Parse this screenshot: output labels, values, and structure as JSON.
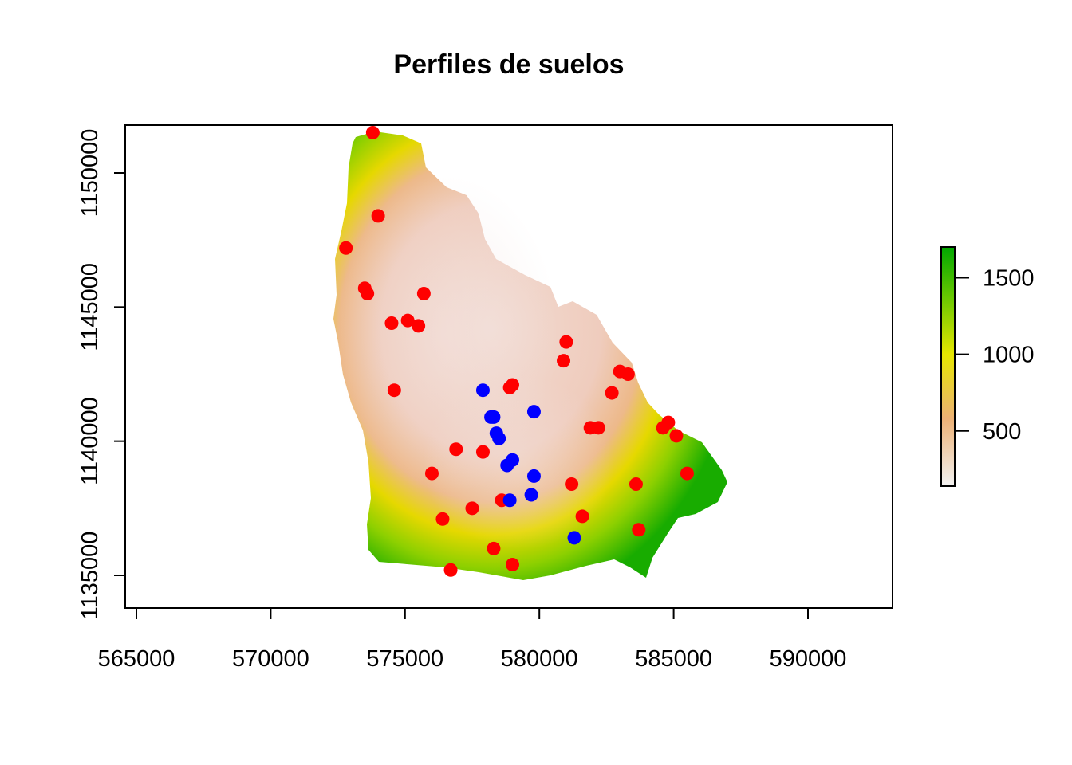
{
  "chart_data": {
    "type": "map",
    "title": "Perfiles de suelos",
    "xlim": [
      564500,
      593000
    ],
    "ylim": [
      1133200,
      1151800
    ],
    "x_ticks": [
      565000,
      570000,
      575000,
      580000,
      585000,
      590000
    ],
    "y_ticks": [
      1135000,
      1140000,
      1145000,
      1150000
    ],
    "x_tick_labels": [
      "565000",
      "570000",
      "575000",
      "580000",
      "585000",
      "590000"
    ],
    "y_tick_labels": [
      "1135000",
      "1140000",
      "1145000",
      "1150000"
    ],
    "elevation_legend": {
      "range": [
        140,
        1700
      ],
      "ticks": [
        500,
        1000,
        1500
      ],
      "tick_labels": [
        "500",
        "1000",
        "1500"
      ],
      "colors": [
        "#f2f2f2",
        "#ecb176",
        "#e6e600",
        "#63c600",
        "#00a600"
      ]
    },
    "series": [
      {
        "color": "#ff0000",
        "points": [
          [
            573800,
            1151500
          ],
          [
            574000,
            1148400
          ],
          [
            572800,
            1147200
          ],
          [
            573500,
            1145700
          ],
          [
            573600,
            1145500
          ],
          [
            575700,
            1145500
          ],
          [
            574500,
            1144400
          ],
          [
            575100,
            1144500
          ],
          [
            575500,
            1144300
          ],
          [
            581000,
            1143700
          ],
          [
            580900,
            1143000
          ],
          [
            583000,
            1142600
          ],
          [
            583300,
            1142500
          ],
          [
            579000,
            1142100
          ],
          [
            578900,
            1142000
          ],
          [
            574600,
            1141900
          ],
          [
            582700,
            1141800
          ],
          [
            584800,
            1140700
          ],
          [
            584600,
            1140500
          ],
          [
            581900,
            1140500
          ],
          [
            582200,
            1140500
          ],
          [
            585100,
            1140200
          ],
          [
            576900,
            1139700
          ],
          [
            577900,
            1139600
          ],
          [
            576000,
            1138800
          ],
          [
            585500,
            1138800
          ],
          [
            583600,
            1138400
          ],
          [
            581200,
            1138400
          ],
          [
            578600,
            1137800
          ],
          [
            577500,
            1137500
          ],
          [
            581600,
            1137200
          ],
          [
            576400,
            1137100
          ],
          [
            583700,
            1136700
          ],
          [
            578300,
            1136000
          ],
          [
            579000,
            1135400
          ],
          [
            576700,
            1135200
          ]
        ]
      },
      {
        "color": "#0000ff",
        "points": [
          [
            577900,
            1141900
          ],
          [
            578200,
            1140900
          ],
          [
            578300,
            1140900
          ],
          [
            579800,
            1141100
          ],
          [
            578400,
            1140300
          ],
          [
            578500,
            1140100
          ],
          [
            579000,
            1139300
          ],
          [
            578800,
            1139100
          ],
          [
            579800,
            1138700
          ],
          [
            579700,
            1138000
          ],
          [
            578900,
            1137800
          ],
          [
            581300,
            1136400
          ]
        ]
      }
    ]
  }
}
